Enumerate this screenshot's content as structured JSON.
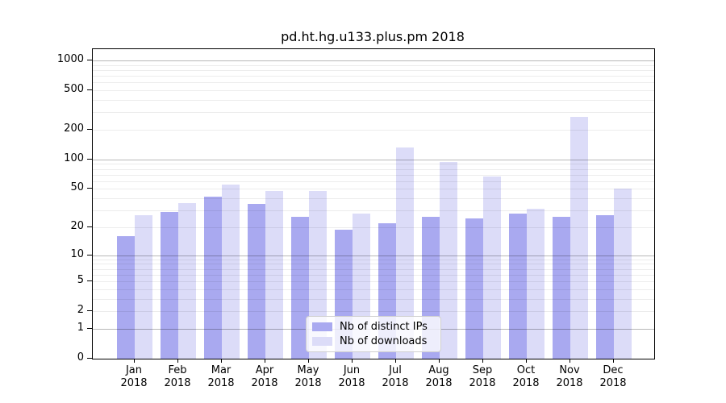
{
  "chart_data": {
    "type": "bar",
    "title": "pd.ht.hg.u133.plus.pm 2018",
    "categories": [
      "Jan",
      "Feb",
      "Mar",
      "Apr",
      "May",
      "Jun",
      "Jul",
      "Aug",
      "Sep",
      "Oct",
      "Nov",
      "Dec"
    ],
    "category_year": "2018",
    "series": [
      {
        "name": "Nb of distinct IPs",
        "color": "#a9a9f0",
        "values": [
          16,
          29,
          42,
          35,
          26,
          19,
          22,
          26,
          25,
          28,
          26,
          27
        ]
      },
      {
        "name": "Nb of downloads",
        "color": "#dcdcf8",
        "values": [
          27,
          36,
          55,
          48,
          48,
          28,
          132,
          95,
          67,
          31,
          270,
          50
        ]
      }
    ],
    "yscale": "log1p",
    "yticks": [
      0,
      1,
      2,
      5,
      10,
      20,
      50,
      100,
      200,
      500,
      1000
    ],
    "ylim": [
      0,
      1000
    ],
    "xlabel": "",
    "ylabel": "",
    "grid": "horizontal-major-and-minor",
    "legend_position": "lower center"
  }
}
